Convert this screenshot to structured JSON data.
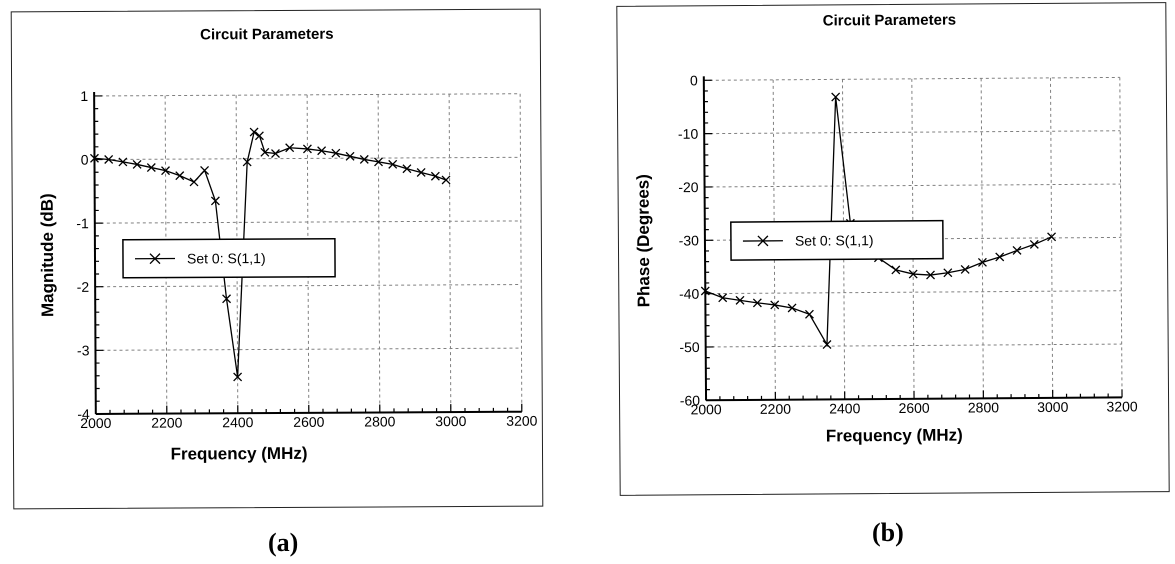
{
  "colors": {
    "ink": "#000000",
    "grid": "#808080",
    "background": "#ffffff"
  },
  "captions": [
    "(a)",
    "(b)"
  ],
  "chart_data": [
    {
      "type": "line",
      "title": "Circuit Parameters",
      "xlabel": "Frequency (MHz)",
      "ylabel": "Magnitude (dB)",
      "xlim": [
        2000,
        3200
      ],
      "ylim": [
        -4,
        1
      ],
      "x_ticks": [
        2000,
        2200,
        2400,
        2600,
        2800,
        3000,
        3200
      ],
      "y_ticks": [
        1,
        0,
        -1,
        -2,
        -3,
        -4
      ],
      "grid": true,
      "legend": "middle-left",
      "marker": "x",
      "series": [
        {
          "name": "Set 0: S(1,1)",
          "x": [
            2000,
            2040,
            2080,
            2120,
            2160,
            2200,
            2240,
            2280,
            2310,
            2340,
            2370,
            2400,
            2430,
            2450,
            2465,
            2480,
            2510,
            2550,
            2600,
            2640,
            2680,
            2720,
            2760,
            2800,
            2840,
            2880,
            2920,
            2960,
            2990
          ],
          "y": [
            0.02,
            0.0,
            -0.04,
            -0.08,
            -0.13,
            -0.18,
            -0.26,
            -0.36,
            -0.18,
            -0.66,
            -2.2,
            -3.43,
            -0.05,
            0.42,
            0.36,
            0.1,
            0.08,
            0.17,
            0.15,
            0.12,
            0.08,
            0.03,
            -0.02,
            -0.06,
            -0.1,
            -0.17,
            -0.23,
            -0.29,
            -0.35
          ]
        }
      ]
    },
    {
      "type": "line",
      "title": "Circuit Parameters",
      "xlabel": "Frequency (MHz)",
      "ylabel": "Phase (Degrees)",
      "xlim": [
        2000,
        3200
      ],
      "ylim": [
        -60,
        0
      ],
      "x_ticks": [
        2000,
        2200,
        2400,
        2600,
        2800,
        3000,
        3200
      ],
      "y_ticks": [
        0,
        -10,
        -20,
        -30,
        -40,
        -50,
        -60
      ],
      "grid": true,
      "legend": "middle-left",
      "marker": "x",
      "series": [
        {
          "name": "Set 0: S(1,1)",
          "x": [
            2000,
            2050,
            2100,
            2150,
            2200,
            2250,
            2300,
            2350,
            2380,
            2420,
            2460,
            2500,
            2550,
            2600,
            2650,
            2700,
            2750,
            2800,
            2850,
            2900,
            2950,
            3000
          ],
          "y": [
            -39.5,
            -40.8,
            -41.3,
            -41.8,
            -42.2,
            -42.8,
            -44.0,
            -49.7,
            -3.3,
            -27.0,
            -32.0,
            -33.5,
            -35.8,
            -36.6,
            -36.8,
            -36.4,
            -35.8,
            -34.5,
            -33.5,
            -32.3,
            -31.2,
            -29.8
          ]
        }
      ]
    }
  ]
}
